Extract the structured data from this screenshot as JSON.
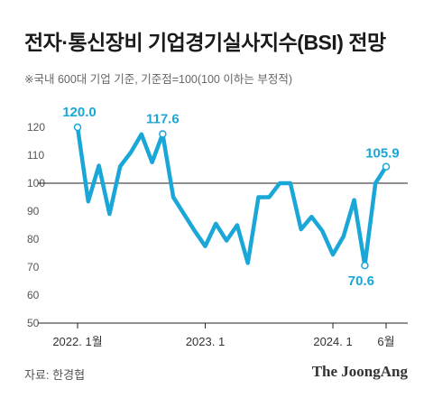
{
  "title": "전자·통신장비 기업경기실사지수(BSI) 전망",
  "subtitle": "※국내 600대 기업 기준, 기준점=100(100 이하는 부정적)",
  "source": "자료: 한경협",
  "brand": "The JoongAng",
  "colors": {
    "line": "#1aa7d8",
    "label": "#1aa7d8",
    "axis": "#222222",
    "grid": "#d0d0d0",
    "tick_text": "#555555"
  },
  "chart_data": {
    "type": "line",
    "title": "전자·통신장비 기업경기실사지수(BSI) 전망",
    "xlabel": "",
    "ylabel": "",
    "ylim": [
      50,
      125
    ],
    "yticks": [
      50,
      60,
      70,
      80,
      90,
      100,
      110,
      120
    ],
    "reference_line": 100,
    "x_tick_labels": [
      {
        "index": 0,
        "label": "2022. 1월"
      },
      {
        "index": 12,
        "label": "2023. 1"
      },
      {
        "index": 24,
        "label": "2024. 1"
      },
      {
        "index": 29,
        "label": "6월"
      }
    ],
    "series": [
      {
        "values": [
          120.0,
          93.5,
          106.3,
          89.0,
          106.0,
          111.0,
          117.5,
          107.5,
          117.6,
          95.0,
          89.0,
          83.0,
          77.5,
          85.5,
          79.5,
          85.0,
          71.5,
          95.0,
          95.0,
          100.0,
          100.0,
          83.5,
          88.0,
          83.0,
          74.5,
          81.0,
          94.0,
          70.6,
          100.0,
          105.9
        ]
      }
    ],
    "annotations": [
      {
        "index": 0,
        "label": "120.0"
      },
      {
        "index": 8,
        "label": "117.6"
      },
      {
        "index": 27,
        "label": "70.6"
      },
      {
        "index": 29,
        "label": "105.9"
      }
    ]
  }
}
